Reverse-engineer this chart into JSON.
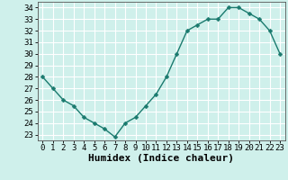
{
  "x": [
    0,
    1,
    2,
    3,
    4,
    5,
    6,
    7,
    8,
    9,
    10,
    11,
    12,
    13,
    14,
    15,
    16,
    17,
    18,
    19,
    20,
    21,
    22,
    23
  ],
  "y": [
    28,
    27,
    26,
    25.5,
    24.5,
    24,
    23.5,
    22.8,
    24,
    24.5,
    25.5,
    26.5,
    28,
    30,
    32,
    32.5,
    33,
    33,
    34,
    34,
    33.5,
    33,
    32,
    30
  ],
  "line_color": "#1a7a6e",
  "marker": "D",
  "marker_size": 2.5,
  "line_width": 1.0,
  "bg_color": "#cff0eb",
  "grid_color": "#ffffff",
  "xlabel": "Humidex (Indice chaleur)",
  "xlabel_fontsize": 8,
  "ylabel_ticks": [
    23,
    24,
    25,
    26,
    27,
    28,
    29,
    30,
    31,
    32,
    33,
    34
  ],
  "xlim": [
    -0.5,
    23.5
  ],
  "ylim": [
    22.5,
    34.5
  ],
  "tick_fontsize": 6.5,
  "xtick_labels": [
    "0",
    "1",
    "2",
    "3",
    "4",
    "5",
    "6",
    "7",
    "8",
    "9",
    "10",
    "11",
    "12",
    "13",
    "14",
    "15",
    "16",
    "17",
    "18",
    "19",
    "20",
    "21",
    "22",
    "23"
  ]
}
